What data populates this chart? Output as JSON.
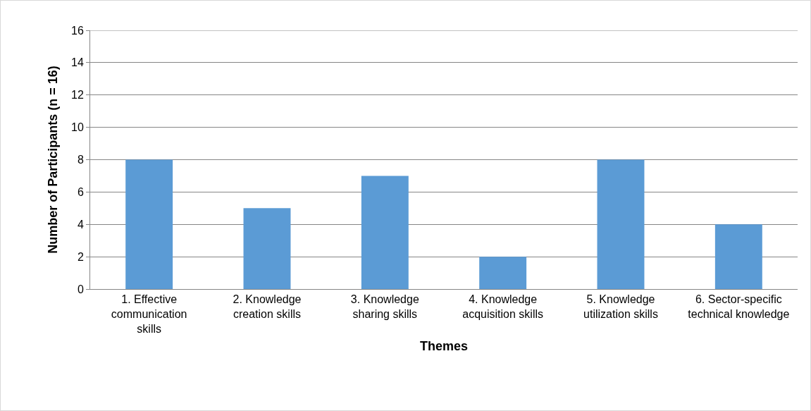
{
  "chart_data": {
    "type": "bar",
    "xlabel": "Themes",
    "ylabel": "Number of Participants (n = 16)",
    "categories": [
      "1. Effective communication skills",
      "2. Knowledge creation skills",
      "3. Knowledge sharing skills",
      "4. Knowledge acquisition skills",
      "5. Knowledge utilization skills",
      "6. Sector-specific technical knowledge"
    ],
    "values": [
      8,
      5,
      7,
      2,
      8,
      4
    ],
    "color": "#5b9bd5",
    "ylim": [
      0,
      16
    ],
    "yticks": [
      0,
      2,
      4,
      6,
      8,
      10,
      12,
      14,
      16
    ],
    "grid": "y"
  }
}
